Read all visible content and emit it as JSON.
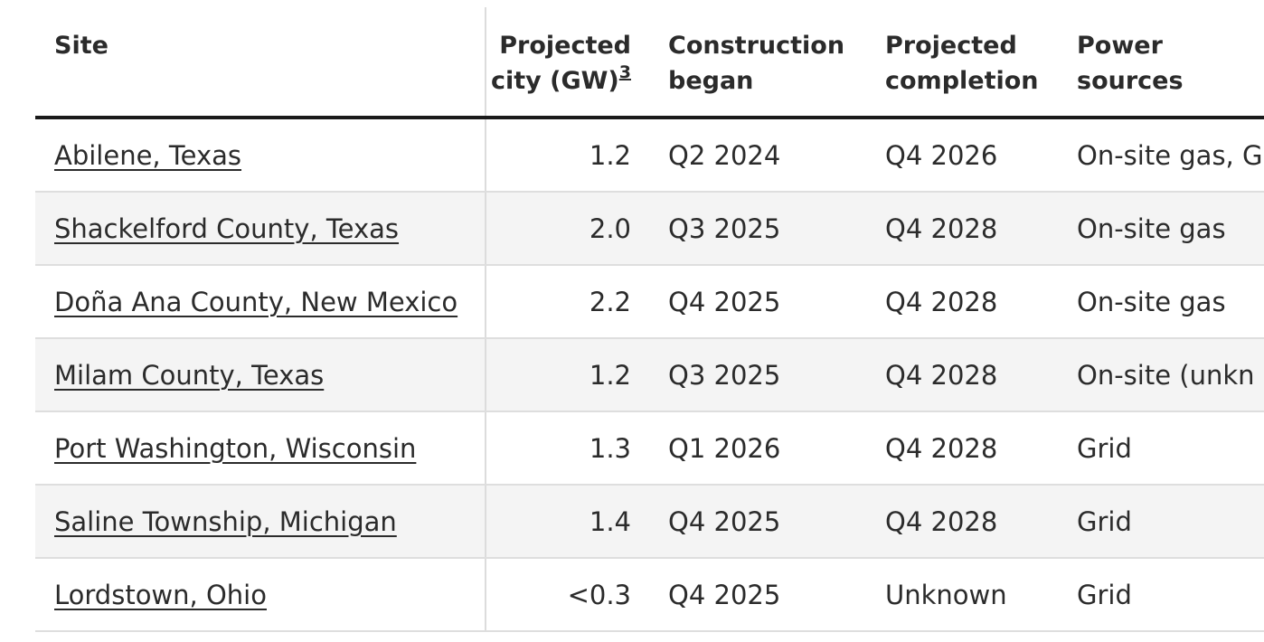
{
  "headers": {
    "site": "Site",
    "capacity_line1": "Projected",
    "capacity_line2": "city (GW)",
    "capacity_footnote": "3",
    "began_line1": "Construction",
    "began_line2": "began",
    "completion_line1": "Projected",
    "completion_line2": "completion",
    "power_line1": "Power",
    "power_line2": "sources"
  },
  "rows": [
    {
      "site": "Abilene, Texas",
      "capacity": "1.2",
      "began": "Q2 2024",
      "completion": "Q4 2026",
      "power": "On-site gas, G"
    },
    {
      "site": "Shackelford County, Texas",
      "capacity": "2.0",
      "began": "Q3 2025",
      "completion": "Q4 2028",
      "power": "On-site gas"
    },
    {
      "site": "Doña Ana County, New Mexico",
      "capacity": "2.2",
      "began": "Q4 2025",
      "completion": "Q4 2028",
      "power": "On-site gas"
    },
    {
      "site": "Milam County, Texas",
      "capacity": "1.2",
      "began": "Q3 2025",
      "completion": "Q4 2028",
      "power": "On-site (unkn"
    },
    {
      "site": "Port Washington, Wisconsin",
      "capacity": "1.3",
      "began": "Q1 2026",
      "completion": "Q4 2028",
      "power": "Grid"
    },
    {
      "site": "Saline Township, Michigan",
      "capacity": "1.4",
      "began": "Q4 2025",
      "completion": "Q4 2028",
      "power": "Grid"
    },
    {
      "site": "Lordstown, Ohio",
      "capacity": "<0.3",
      "began": "Q4 2025",
      "completion": "Unknown",
      "power": "Grid"
    }
  ]
}
